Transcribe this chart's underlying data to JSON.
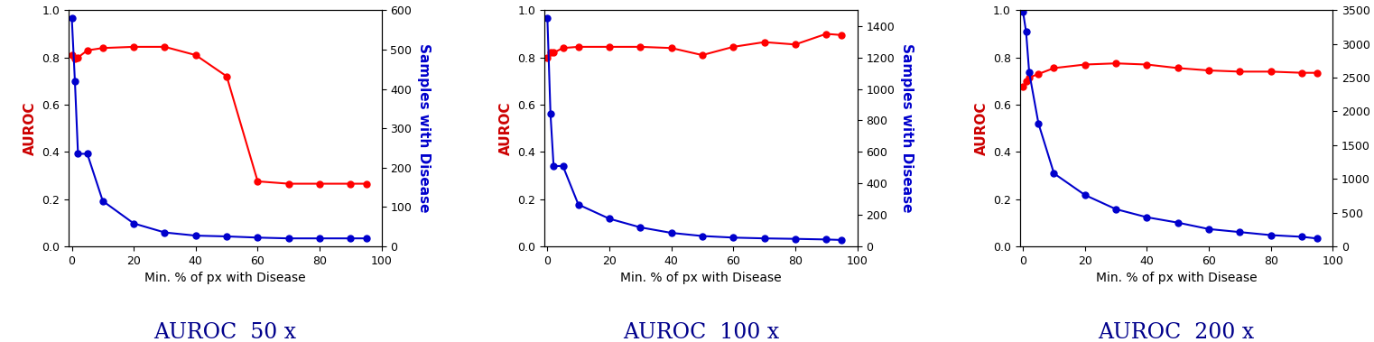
{
  "panels": [
    {
      "title": "AUROC  50 x",
      "x": [
        0,
        1,
        2,
        5,
        10,
        20,
        30,
        40,
        50,
        60,
        70,
        80,
        90,
        95
      ],
      "auroc": [
        0.81,
        0.795,
        0.8,
        0.83,
        0.84,
        0.845,
        0.845,
        0.81,
        0.72,
        0.275,
        0.265,
        0.265,
        0.265,
        0.265
      ],
      "samples": [
        580,
        420,
        235,
        235,
        115,
        58,
        35,
        27,
        25,
        22,
        20,
        20,
        20,
        20
      ],
      "ylim_left": [
        0.0,
        1.0
      ],
      "ylim_right": [
        0,
        600
      ],
      "yticks_right": [
        0,
        100,
        200,
        300,
        400,
        500,
        600
      ],
      "yticks_left": [
        0.0,
        0.2,
        0.4,
        0.6,
        0.8,
        1.0
      ]
    },
    {
      "title": "AUROC  100 x",
      "x": [
        0,
        1,
        2,
        5,
        10,
        20,
        30,
        40,
        50,
        60,
        70,
        80,
        90,
        95
      ],
      "auroc": [
        0.8,
        0.82,
        0.82,
        0.84,
        0.845,
        0.845,
        0.845,
        0.84,
        0.81,
        0.845,
        0.865,
        0.855,
        0.9,
        0.895
      ],
      "samples": [
        1450,
        840,
        510,
        510,
        265,
        175,
        120,
        85,
        65,
        55,
        50,
        47,
        43,
        40
      ],
      "ylim_left": [
        0.0,
        1.0
      ],
      "ylim_right": [
        0,
        1500
      ],
      "yticks_right": [
        0,
        200,
        400,
        600,
        800,
        1000,
        1200,
        1400
      ],
      "yticks_left": [
        0.0,
        0.2,
        0.4,
        0.6,
        0.8,
        1.0
      ]
    },
    {
      "title": "AUROC  200 x",
      "x": [
        0,
        1,
        2,
        5,
        10,
        20,
        30,
        40,
        50,
        60,
        70,
        80,
        90,
        95
      ],
      "auroc": [
        0.675,
        0.7,
        0.715,
        0.73,
        0.755,
        0.77,
        0.775,
        0.77,
        0.755,
        0.745,
        0.74,
        0.74,
        0.735,
        0.735
      ],
      "samples": [
        3480,
        3180,
        2580,
        1820,
        1080,
        760,
        550,
        430,
        350,
        255,
        210,
        165,
        140,
        115
      ],
      "ylim_left": [
        0.0,
        1.0
      ],
      "ylim_right": [
        0,
        3500
      ],
      "yticks_right": [
        0,
        500,
        1000,
        1500,
        2000,
        2500,
        3000,
        3500
      ],
      "yticks_left": [
        0.0,
        0.2,
        0.4,
        0.6,
        0.8,
        1.0
      ]
    }
  ],
  "xlabel": "Min. % of px with Disease",
  "ylabel_left": "AUROC",
  "ylabel_right": "Samples with Disease",
  "color_auroc": "#ff0000",
  "color_samples": "#0000cc",
  "ylabel_left_color": "#cc0000",
  "ylabel_right_color": "#0000cc",
  "title_fontsize": 17,
  "title_color": "#00008B",
  "xticks": [
    0,
    20,
    40,
    60,
    80,
    100
  ],
  "background_color": "#ffffff",
  "marker": "o",
  "markersize": 5,
  "linewidth": 1.5,
  "tick_fontsize": 9,
  "label_fontsize": 10,
  "ylabel_fontsize": 11
}
